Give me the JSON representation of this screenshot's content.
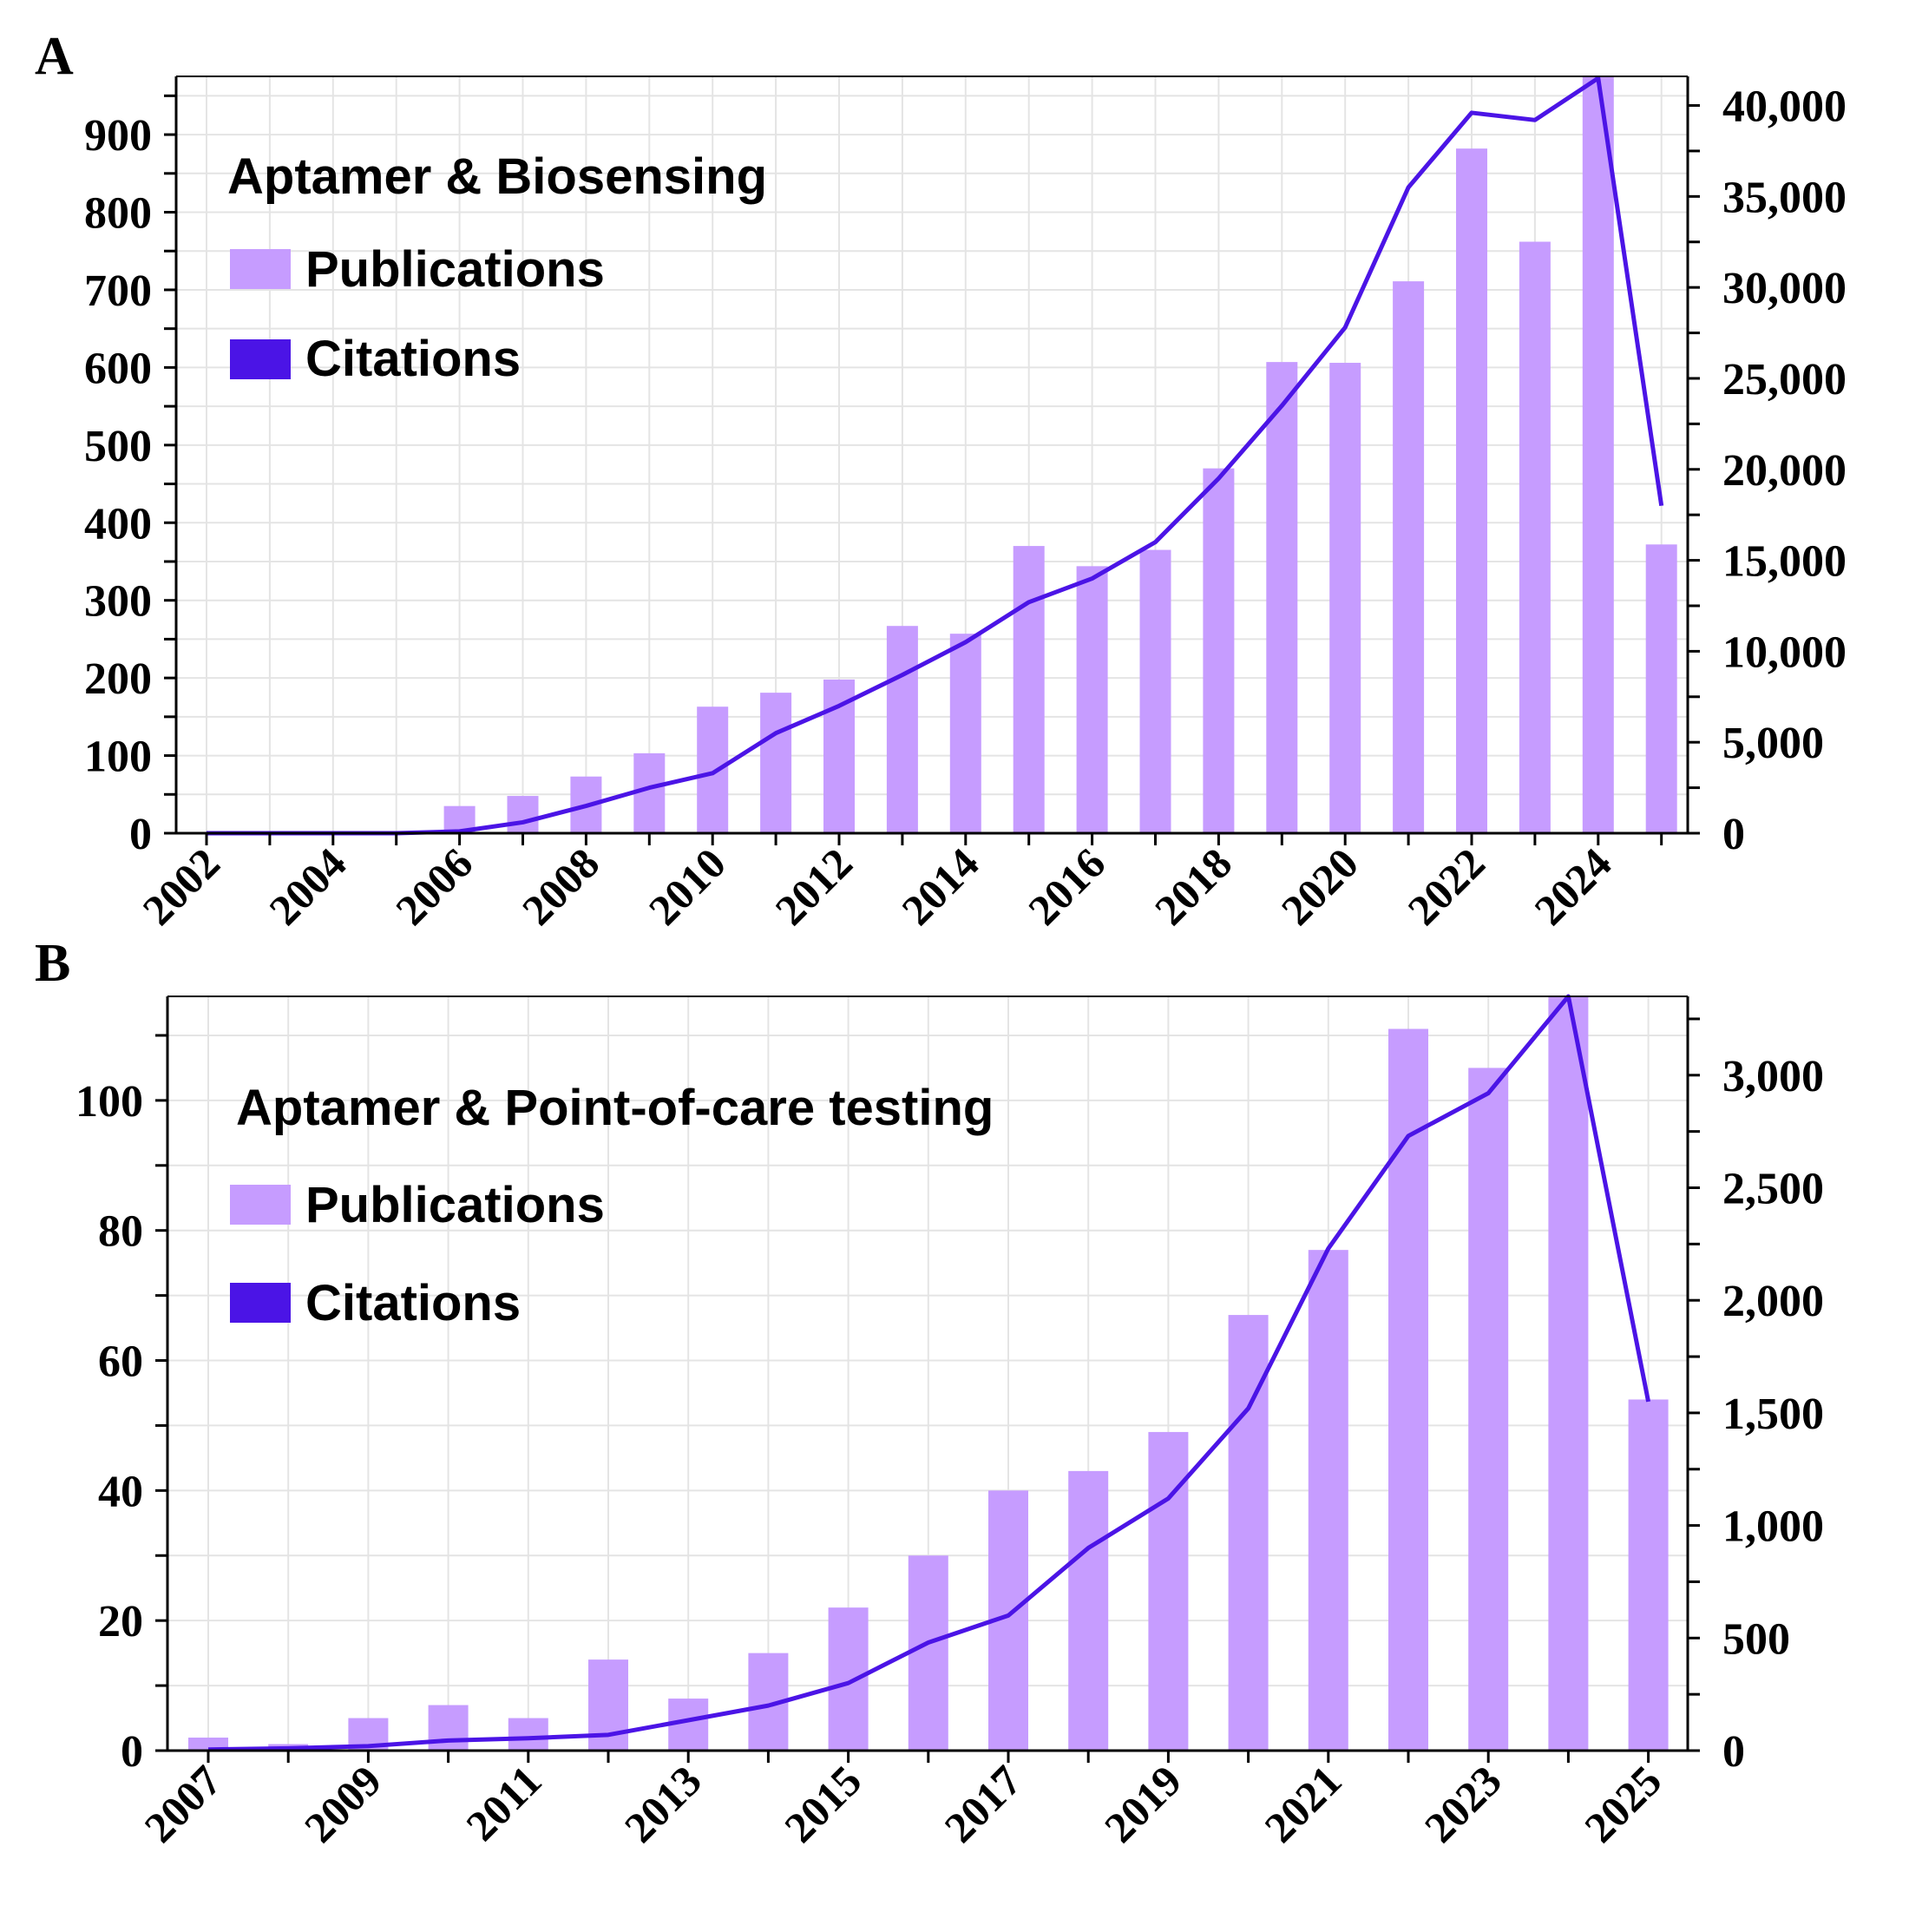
{
  "colors": {
    "bar": "#c69cff",
    "line": "#4b14e6",
    "grid": "#e4e4e4"
  },
  "chart_data": [
    {
      "panel": "A",
      "type": "bar+line",
      "title": "Aptamer & Biosensing",
      "legend": [
        {
          "label": "Publications",
          "kind": "bar"
        },
        {
          "label": "Citations",
          "kind": "line"
        }
      ],
      "legend_position": "top-left",
      "x": [
        2002,
        2003,
        2004,
        2005,
        2006,
        2007,
        2008,
        2009,
        2010,
        2011,
        2012,
        2013,
        2014,
        2015,
        2016,
        2017,
        2018,
        2019,
        2020,
        2021,
        2022,
        2023,
        2024,
        2025
      ],
      "x_tick_labels": [
        "2002",
        "2004",
        "2006",
        "2008",
        "2010",
        "2012",
        "2014",
        "2016",
        "2018",
        "2020",
        "2022",
        "2024"
      ],
      "series": [
        {
          "name": "Publications",
          "axis": "left",
          "values": [
            0,
            0,
            0,
            0,
            35,
            48,
            73,
            103,
            163,
            181,
            198,
            267,
            257,
            370,
            344,
            365,
            470,
            607,
            606,
            711,
            882,
            762,
            1000,
            372
          ]
        },
        {
          "name": "Citations",
          "axis": "right",
          "values": [
            0,
            0,
            0,
            0,
            100,
            600,
            1500,
            2500,
            3300,
            5500,
            7000,
            8700,
            10500,
            12700,
            14000,
            16000,
            19500,
            23500,
            27800,
            35500,
            39600,
            39200,
            41500,
            18000
          ]
        }
      ],
      "ylim_left": [
        0,
        975
      ],
      "yticks_left": [
        0,
        100,
        200,
        300,
        400,
        500,
        600,
        700,
        800,
        900
      ],
      "ytick_labels_left": [
        "0",
        "100",
        "200",
        "300",
        "400",
        "500",
        "600",
        "700",
        "800",
        "900"
      ],
      "ylim_right": [
        0,
        41600
      ],
      "yticks_right": [
        0,
        5000,
        10000,
        15000,
        20000,
        25000,
        30000,
        35000,
        40000
      ],
      "ytick_labels_right": [
        "0",
        "5,000",
        "10,000",
        "15,000",
        "20,000",
        "25,000",
        "30,000",
        "35,000",
        "40,000"
      ],
      "grid": true
    },
    {
      "panel": "B",
      "type": "bar+line",
      "title": "Aptamer & Point-of-care testing",
      "legend": [
        {
          "label": "Publications",
          "kind": "bar"
        },
        {
          "label": "Citations",
          "kind": "line"
        }
      ],
      "legend_position": "top-left",
      "x": [
        2007,
        2008,
        2009,
        2010,
        2011,
        2012,
        2013,
        2014,
        2015,
        2016,
        2017,
        2018,
        2019,
        2020,
        2021,
        2022,
        2023,
        2024,
        2025
      ],
      "x_tick_labels": [
        "2007",
        "2009",
        "2011",
        "2013",
        "2015",
        "2017",
        "2019",
        "2021",
        "2023",
        "2025"
      ],
      "series": [
        {
          "name": "Publications",
          "axis": "left",
          "values": [
            2,
            1,
            5,
            7,
            5,
            14,
            8,
            15,
            22,
            30,
            40,
            43,
            49,
            67,
            77,
            111,
            105,
            117,
            54
          ]
        },
        {
          "name": "Citations",
          "axis": "right",
          "values": [
            5,
            10,
            20,
            45,
            55,
            70,
            135,
            200,
            300,
            480,
            600,
            900,
            1120,
            1520,
            2230,
            2730,
            2920,
            3370,
            1550
          ]
        }
      ],
      "ylim_left": [
        0,
        116
      ],
      "yticks_left": [
        0,
        20,
        40,
        60,
        80,
        100
      ],
      "ytick_labels_left": [
        "0",
        "20",
        "40",
        "60",
        "80",
        "100"
      ],
      "ylim_right": [
        0,
        3350
      ],
      "yticks_right": [
        0,
        500,
        1000,
        1500,
        2000,
        2500,
        3000
      ],
      "ytick_labels_right": [
        "0",
        "500",
        "1,000",
        "1,500",
        "2,000",
        "2,500",
        "3,000"
      ],
      "grid": true
    }
  ]
}
